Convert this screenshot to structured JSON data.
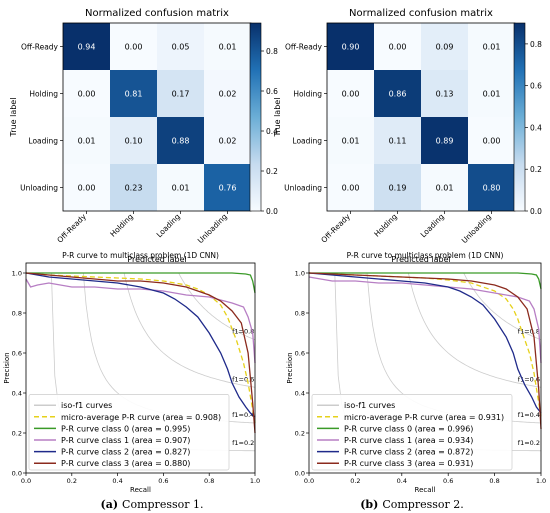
{
  "captions": [
    {
      "label": "(a)",
      "text": "Compressor 1."
    },
    {
      "label": "(b)",
      "text": "Compressor 2."
    }
  ],
  "chart_data": [
    {
      "type": "heatmap",
      "title": "Normalized confusion matrix",
      "xlabel": "Predicted label",
      "ylabel": "True label",
      "rows": [
        "Off-Ready",
        "Holding",
        "Loading",
        "Unloading"
      ],
      "cols": [
        "Off-Ready",
        "Holding",
        "Loading",
        "Unloading"
      ],
      "values": [
        [
          0.94,
          0.0,
          0.05,
          0.01
        ],
        [
          0.0,
          0.81,
          0.17,
          0.02
        ],
        [
          0.01,
          0.1,
          0.88,
          0.02
        ],
        [
          0.0,
          0.23,
          0.01,
          0.76
        ]
      ],
      "colorbar_ticks": [
        "0.0",
        "0.2",
        "0.4",
        "0.6",
        "0.8"
      ],
      "vmax": 0.94
    },
    {
      "type": "heatmap",
      "title": "Normalized confusion matrix",
      "xlabel": "Predicted label",
      "ylabel": "True label",
      "rows": [
        "Off-Ready",
        "Holding",
        "Loading",
        "Unloading"
      ],
      "cols": [
        "Off-Ready",
        "Holding",
        "Loading",
        "Unloading"
      ],
      "values": [
        [
          0.9,
          0.0,
          0.09,
          0.01
        ],
        [
          0.0,
          0.86,
          0.13,
          0.01
        ],
        [
          0.01,
          0.11,
          0.89,
          0.0
        ],
        [
          0.0,
          0.19,
          0.01,
          0.8
        ]
      ],
      "colorbar_ticks": [
        "0.0",
        "0.2",
        "0.4",
        "0.6",
        "0.8"
      ],
      "vmax": 0.9
    },
    {
      "type": "line",
      "title": "P-R curve to multiclass problem (1D CNN)",
      "xlabel": "Recall",
      "ylabel": "Precision",
      "xlim": [
        0,
        1
      ],
      "ylim": [
        0,
        1.05
      ],
      "xticks": [
        "0.0",
        "0.2",
        "0.4",
        "0.6",
        "0.8",
        "1.0"
      ],
      "yticks": [
        "0.0",
        "0.2",
        "0.4",
        "0.6",
        "0.8",
        "1.0"
      ],
      "iso_f1": [
        {
          "f": 0.2,
          "label": "f1=0.2"
        },
        {
          "f": 0.4,
          "label": "f1=0.4"
        },
        {
          "f": 0.6,
          "label": "f1=0.6"
        },
        {
          "f": 0.8,
          "label": "f1=0.8"
        }
      ],
      "legend_position": "lower-left",
      "legend": [
        {
          "label": "iso-f1 curves",
          "color": "#cccccc",
          "dash": ""
        },
        {
          "label": "micro-average P-R curve (area = 0.908)",
          "color": "#e6d11a",
          "dash": "5,3"
        },
        {
          "label": "P-R curve class 0 (area = 0.995)",
          "color": "#3a9a28",
          "dash": ""
        },
        {
          "label": "P-R curve class 1 (area = 0.907)",
          "color": "#b77ec4",
          "dash": ""
        },
        {
          "label": "P-R curve class 2 (area = 0.827)",
          "color": "#1f2a8a",
          "dash": ""
        },
        {
          "label": "P-R curve class 3 (area = 0.880)",
          "color": "#8b2a1d",
          "dash": ""
        }
      ],
      "series": [
        {
          "name": "micro-average P-R curve (area = 0.908)",
          "color": "#e6d11a",
          "dash": "5,3",
          "x": [
            0,
            0.1,
            0.2,
            0.3,
            0.4,
            0.5,
            0.6,
            0.7,
            0.75,
            0.8,
            0.85,
            0.88,
            0.9,
            0.92,
            0.95,
            0.97,
            1.0
          ],
          "y": [
            1.0,
            0.99,
            0.985,
            0.98,
            0.975,
            0.97,
            0.96,
            0.94,
            0.92,
            0.89,
            0.84,
            0.78,
            0.72,
            0.66,
            0.55,
            0.45,
            0.25
          ]
        },
        {
          "name": "P-R curve class 0 (area = 0.995)",
          "color": "#3a9a28",
          "dash": "",
          "x": [
            0,
            0.1,
            0.3,
            0.5,
            0.7,
            0.9,
            0.96,
            0.98,
            0.99,
            1.0
          ],
          "y": [
            1.0,
            1.0,
            1.0,
            1.0,
            1.0,
            1.0,
            0.995,
            0.99,
            0.96,
            0.9
          ]
        },
        {
          "name": "P-R curve class 1 (area = 0.907)",
          "color": "#b77ec4",
          "dash": "",
          "x": [
            0,
            0.02,
            0.05,
            0.1,
            0.2,
            0.3,
            0.4,
            0.5,
            0.6,
            0.7,
            0.8,
            0.9,
            0.95,
            0.97,
            0.99,
            1.0
          ],
          "y": [
            0.97,
            0.93,
            0.94,
            0.95,
            0.93,
            0.93,
            0.92,
            0.92,
            0.91,
            0.89,
            0.88,
            0.85,
            0.83,
            0.78,
            0.7,
            0.55
          ]
        },
        {
          "name": "P-R curve class 2 (area = 0.827)",
          "color": "#1f2a8a",
          "dash": "",
          "x": [
            0,
            0.1,
            0.2,
            0.3,
            0.4,
            0.5,
            0.6,
            0.65,
            0.7,
            0.75,
            0.8,
            0.85,
            0.88,
            0.9,
            0.93,
            0.96,
            0.98,
            1.0
          ],
          "y": [
            1.0,
            0.98,
            0.97,
            0.96,
            0.95,
            0.93,
            0.9,
            0.87,
            0.83,
            0.78,
            0.7,
            0.6,
            0.52,
            0.45,
            0.38,
            0.33,
            0.3,
            0.28
          ]
        },
        {
          "name": "P-R curve class 3 (area = 0.880)",
          "color": "#8b2a1d",
          "dash": "",
          "x": [
            0,
            0.1,
            0.2,
            0.3,
            0.4,
            0.5,
            0.6,
            0.7,
            0.75,
            0.8,
            0.85,
            0.9,
            0.94,
            0.97,
            0.99,
            1.0
          ],
          "y": [
            1.0,
            0.99,
            0.98,
            0.97,
            0.96,
            0.96,
            0.95,
            0.93,
            0.91,
            0.89,
            0.86,
            0.81,
            0.75,
            0.6,
            0.35,
            0.2
          ]
        }
      ]
    },
    {
      "type": "line",
      "title": "P-R curve to multiclass problem (1D CNN)",
      "xlabel": "Recall",
      "ylabel": "Precision",
      "xlim": [
        0,
        1
      ],
      "ylim": [
        0,
        1.05
      ],
      "xticks": [
        "0.0",
        "0.2",
        "0.4",
        "0.6",
        "0.8",
        "1.0"
      ],
      "yticks": [
        "0.0",
        "0.2",
        "0.4",
        "0.6",
        "0.8",
        "1.0"
      ],
      "iso_f1": [
        {
          "f": 0.2,
          "label": "f1=0.2"
        },
        {
          "f": 0.4,
          "label": "f1=0.4"
        },
        {
          "f": 0.6,
          "label": "f1=0.6"
        },
        {
          "f": 0.8,
          "label": "f1=0.8"
        }
      ],
      "legend_position": "lower-left",
      "legend": [
        {
          "label": "iso-f1 curves",
          "color": "#cccccc",
          "dash": ""
        },
        {
          "label": "micro-average P-R curve (area = 0.931)",
          "color": "#e6d11a",
          "dash": "5,3"
        },
        {
          "label": "P-R curve class 0 (area = 0.996)",
          "color": "#3a9a28",
          "dash": ""
        },
        {
          "label": "P-R curve class 1 (area = 0.934)",
          "color": "#b77ec4",
          "dash": ""
        },
        {
          "label": "P-R curve class 2 (area = 0.872)",
          "color": "#1f2a8a",
          "dash": ""
        },
        {
          "label": "P-R curve class 3 (area = 0.931)",
          "color": "#8b2a1d",
          "dash": ""
        }
      ],
      "series": [
        {
          "name": "micro-average P-R curve (area = 0.931)",
          "color": "#e6d11a",
          "dash": "5,3",
          "x": [
            0,
            0.1,
            0.2,
            0.3,
            0.4,
            0.5,
            0.6,
            0.7,
            0.75,
            0.8,
            0.85,
            0.88,
            0.9,
            0.92,
            0.95,
            0.97,
            1.0
          ],
          "y": [
            1.0,
            0.995,
            0.99,
            0.985,
            0.98,
            0.975,
            0.965,
            0.95,
            0.93,
            0.91,
            0.87,
            0.82,
            0.77,
            0.7,
            0.6,
            0.5,
            0.28
          ]
        },
        {
          "name": "P-R curve class 0 (area = 0.996)",
          "color": "#3a9a28",
          "dash": "",
          "x": [
            0,
            0.1,
            0.3,
            0.5,
            0.7,
            0.9,
            0.96,
            0.98,
            0.99,
            1.0
          ],
          "y": [
            1.0,
            1.0,
            1.0,
            1.0,
            1.0,
            1.0,
            0.995,
            0.99,
            0.97,
            0.92
          ]
        },
        {
          "name": "P-R curve class 1 (area = 0.934)",
          "color": "#b77ec4",
          "dash": "",
          "x": [
            0,
            0.05,
            0.1,
            0.2,
            0.3,
            0.4,
            0.5,
            0.6,
            0.7,
            0.8,
            0.9,
            0.95,
            0.97,
            0.99,
            1.0
          ],
          "y": [
            0.98,
            0.97,
            0.96,
            0.96,
            0.95,
            0.95,
            0.94,
            0.93,
            0.92,
            0.9,
            0.88,
            0.86,
            0.82,
            0.72,
            0.55
          ]
        },
        {
          "name": "P-R curve class 2 (area = 0.872)",
          "color": "#1f2a8a",
          "dash": "",
          "x": [
            0,
            0.1,
            0.2,
            0.3,
            0.4,
            0.5,
            0.6,
            0.65,
            0.7,
            0.75,
            0.8,
            0.85,
            0.88,
            0.9,
            0.93,
            0.96,
            0.98,
            1.0
          ],
          "y": [
            1.0,
            0.99,
            0.98,
            0.97,
            0.96,
            0.95,
            0.93,
            0.91,
            0.88,
            0.84,
            0.77,
            0.68,
            0.6,
            0.52,
            0.44,
            0.38,
            0.33,
            0.3
          ]
        },
        {
          "name": "P-R curve class 3 (area = 0.931)",
          "color": "#8b2a1d",
          "dash": "",
          "x": [
            0,
            0.1,
            0.2,
            0.3,
            0.4,
            0.5,
            0.6,
            0.7,
            0.75,
            0.8,
            0.85,
            0.9,
            0.94,
            0.97,
            0.99,
            1.0
          ],
          "y": [
            1.0,
            0.995,
            0.99,
            0.985,
            0.98,
            0.975,
            0.97,
            0.96,
            0.95,
            0.94,
            0.92,
            0.88,
            0.82,
            0.68,
            0.42,
            0.22
          ]
        }
      ]
    }
  ]
}
